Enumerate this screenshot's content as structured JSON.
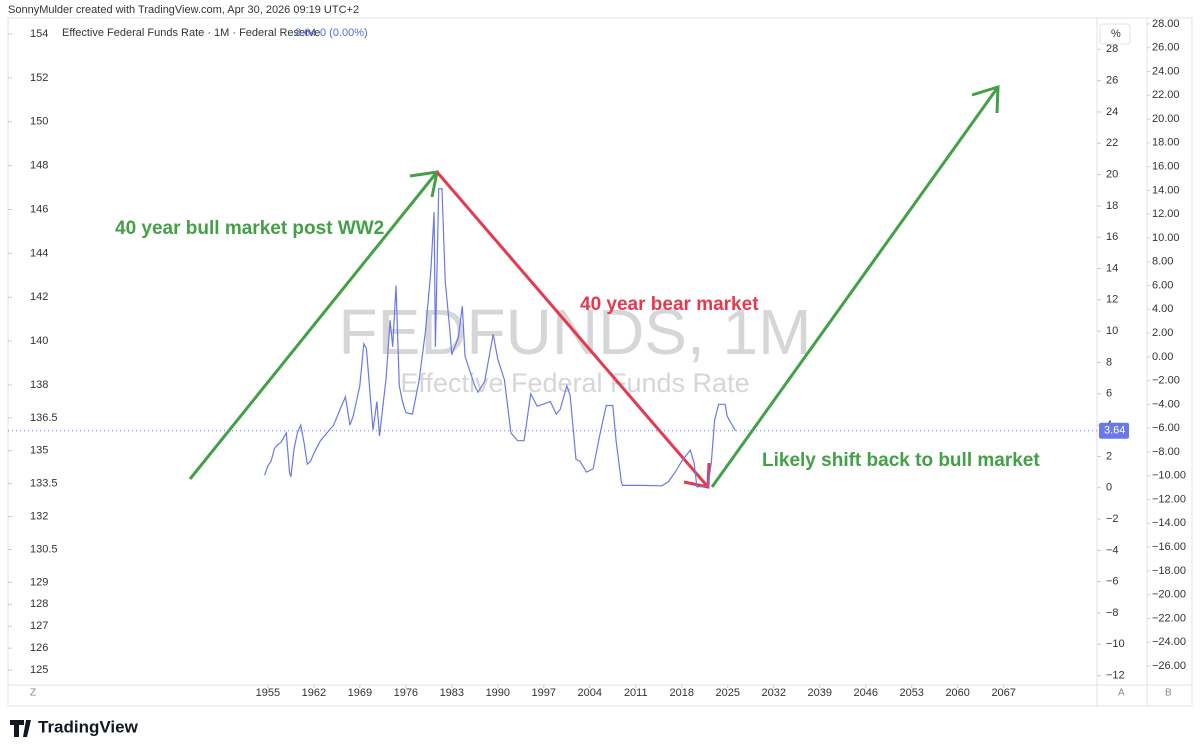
{
  "header": "SonnyMulder created with TradingView.com, Apr 30, 2026 09:19 UTC+2",
  "footer": {
    "logo": "TradingView",
    "corner_left": "Z",
    "corner_a": "A",
    "corner_b": "B"
  },
  "chart_data": {
    "type": "line",
    "watermark": "FEDFUNDS, 1M",
    "watermark_subtitle": "Effective Federal Funds Rate",
    "legend_change": "0 (0.00%)",
    "unit": "%",
    "annotations": [
      "40 year bull market post WW2",
      "40 year bear market",
      "Likely shift back to bull market"
    ],
    "x": [
      1954.5,
      1955,
      1955.5,
      1956,
      1956.5,
      1957,
      1957.8,
      1958.3,
      1958.5,
      1959,
      1959.5,
      1960,
      1960.5,
      1961,
      1961.5,
      1962,
      1963,
      1964,
      1965,
      1966,
      1966.8,
      1967.5,
      1968,
      1969,
      1969.6,
      1970,
      1971,
      1971.6,
      1972,
      1973,
      1973.6,
      1974,
      1974.5,
      1975,
      1975.5,
      1976,
      1977,
      1978,
      1979,
      1979.8,
      1980.3,
      1980.5,
      1981,
      1981.5,
      1982,
      1982.7,
      1983,
      1984,
      1984.6,
      1985,
      1986.5,
      1987,
      1988,
      1989.3,
      1990,
      1991,
      1992,
      1993,
      1994,
      1995,
      1996,
      1998,
      1998.9,
      1999.5,
      2000.5,
      2001,
      2001.9,
      2002.5,
      2003.5,
      2004.5,
      2005.5,
      2006.5,
      2007.5,
      2008,
      2008.8,
      2009,
      2012,
      2015,
      2016,
      2017,
      2018,
      2019.3,
      2019.9,
      2020.3,
      2022,
      2022.5,
      2023,
      2023.6,
      2024.6,
      2024.9,
      2025.2,
      2026.2
    ],
    "series": [
      {
        "name": "Effective Federal Funds Rate · 1M · Federal Reserve",
        "color": "#6b79e8",
        "values": [
          0.8,
          1.4,
          1.7,
          2.5,
          2.75,
          2.9,
          3.5,
          1.0,
          0.7,
          2.5,
          3.5,
          4.0,
          2.9,
          1.5,
          1.7,
          2.2,
          3.0,
          3.5,
          4.0,
          5.0,
          5.8,
          4.0,
          4.6,
          6.5,
          9.2,
          8.9,
          3.7,
          5.5,
          3.3,
          7.0,
          10.7,
          9.0,
          12.9,
          6.5,
          5.5,
          4.8,
          4.7,
          6.8,
          10.0,
          13.8,
          17.6,
          9.0,
          19.1,
          19.1,
          13.2,
          10.1,
          8.5,
          9.6,
          11.6,
          8.4,
          6.5,
          6.1,
          6.8,
          9.8,
          8.2,
          6.9,
          3.5,
          3.0,
          3.0,
          6.0,
          5.2,
          5.5,
          4.7,
          5.0,
          6.5,
          5.9,
          1.8,
          1.7,
          1.0,
          1.2,
          3.3,
          5.25,
          5.25,
          3.0,
          0.4,
          0.15,
          0.15,
          0.12,
          0.4,
          1.0,
          1.7,
          2.4,
          1.55,
          0.05,
          0.1,
          1.6,
          4.3,
          5.33,
          5.33,
          4.6,
          4.33,
          3.64
        ]
      }
    ],
    "xlim": [
      1922.6,
      2080.9
    ],
    "xticks": [
      1955,
      1962,
      1969,
      1976,
      1983,
      1990,
      1997,
      2004,
      2011,
      2018,
      2025,
      2032,
      2039,
      2046,
      2053,
      2060,
      2067
    ],
    "ylim": [
      -12.6,
      30
    ],
    "yticks": [
      {
        "value": -12,
        "label": "−12"
      },
      {
        "value": -10,
        "label": "−10"
      },
      {
        "value": -8,
        "label": "−8"
      },
      {
        "value": -6,
        "label": "−6"
      },
      {
        "value": -4,
        "label": "−4"
      },
      {
        "value": -2,
        "label": "−2"
      },
      0,
      2,
      4,
      6,
      8,
      10,
      12,
      14,
      16,
      18,
      20,
      22,
      24,
      26,
      28
    ],
    "y2lim": [
      -27.6,
      28.5
    ],
    "y2ticks": [
      {
        "value": -26,
        "label": "−26.00"
      },
      {
        "value": -24,
        "label": "−24.00"
      },
      {
        "value": -22,
        "label": "−22.00"
      },
      {
        "value": -20,
        "label": "−20.00"
      },
      {
        "value": -18,
        "label": "−18.00"
      },
      {
        "value": -16,
        "label": "−16.00"
      },
      {
        "value": -14,
        "label": "−14.00"
      },
      {
        "value": -12,
        "label": "−12.00"
      },
      {
        "value": -10,
        "label": "−10.00"
      },
      {
        "value": -8,
        "label": "−8.00"
      },
      {
        "value": -6,
        "label": "−6.00"
      },
      {
        "value": -4,
        "label": "−4.00"
      },
      {
        "value": -2,
        "label": "−2.00"
      },
      {
        "value": 0,
        "label": "0.00"
      },
      {
        "value": 2,
        "label": "2.00"
      },
      {
        "value": 4,
        "label": "4.00"
      },
      {
        "value": 6,
        "label": "6.00"
      },
      {
        "value": 8,
        "label": "8.00"
      },
      {
        "value": 10,
        "label": "10.00"
      },
      {
        "value": 12,
        "label": "12.00"
      },
      {
        "value": 14,
        "label": "14.00"
      },
      {
        "value": 16,
        "label": "16.00"
      },
      {
        "value": 18,
        "label": "18.00"
      },
      {
        "value": 20,
        "label": "20.00"
      },
      {
        "value": 22,
        "label": "22.00"
      },
      {
        "value": 24,
        "label": "24.00"
      },
      {
        "value": 26,
        "label": "26.00"
      },
      {
        "value": 28,
        "label": "28.00"
      }
    ],
    "left_axis": {
      "ylim": [
        124.32,
        154.73
      ],
      "yticks": [
        125,
        126,
        127,
        128,
        129,
        130.5,
        132,
        133.5,
        135,
        136.5,
        138,
        140,
        142,
        144,
        146,
        148,
        150,
        152,
        154
      ]
    }
  }
}
